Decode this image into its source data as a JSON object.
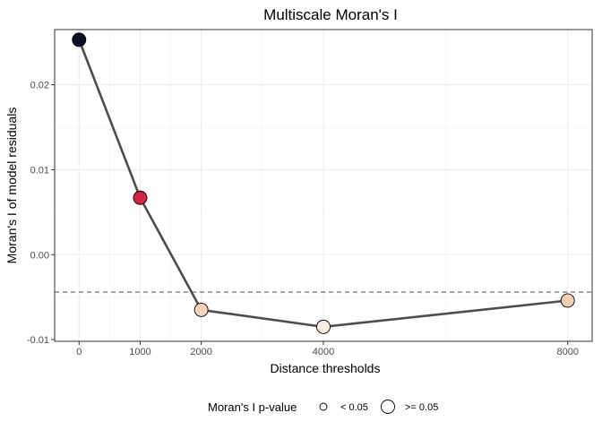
{
  "chart_data": {
    "type": "line",
    "title": "Multiscale Moran's I",
    "xlabel": "Distance thresholds",
    "ylabel": "Moran's I of model residuals",
    "xlim": [
      -400,
      8400
    ],
    "ylim": [
      -0.0102,
      0.0265
    ],
    "x_ticks": [
      0,
      1000,
      2000,
      4000,
      8000
    ],
    "x_tick_labels": [
      "0",
      "1000",
      "2000",
      "4000",
      "8000"
    ],
    "y_ticks": [
      -0.01,
      0.0,
      0.01,
      0.02
    ],
    "y_tick_labels": [
      "-0.01",
      "0.00",
      "0.01",
      "0.02"
    ],
    "reference_line": {
      "y": -0.0044,
      "style": "dashed"
    },
    "grid": true,
    "series": [
      {
        "x": [
          0,
          1000,
          2000,
          4000,
          8000
        ],
        "y": [
          0.0253,
          0.0067,
          -0.0065,
          -0.0085,
          -0.0054
        ],
        "point_colors": [
          "#0d1022",
          "#d42446",
          "#fbd2bb",
          "#fdeee3",
          "#f9cdb3"
        ],
        "p_value_class": [
          "< 0.05",
          "< 0.05",
          ">= 0.05",
          ">= 0.05",
          ">= 0.05"
        ]
      }
    ],
    "line_color": "#4d4d4d",
    "legend": {
      "title": "Moran's I p-value",
      "position": "bottom",
      "items": [
        "< 0.05",
        ">= 0.05"
      ]
    }
  }
}
